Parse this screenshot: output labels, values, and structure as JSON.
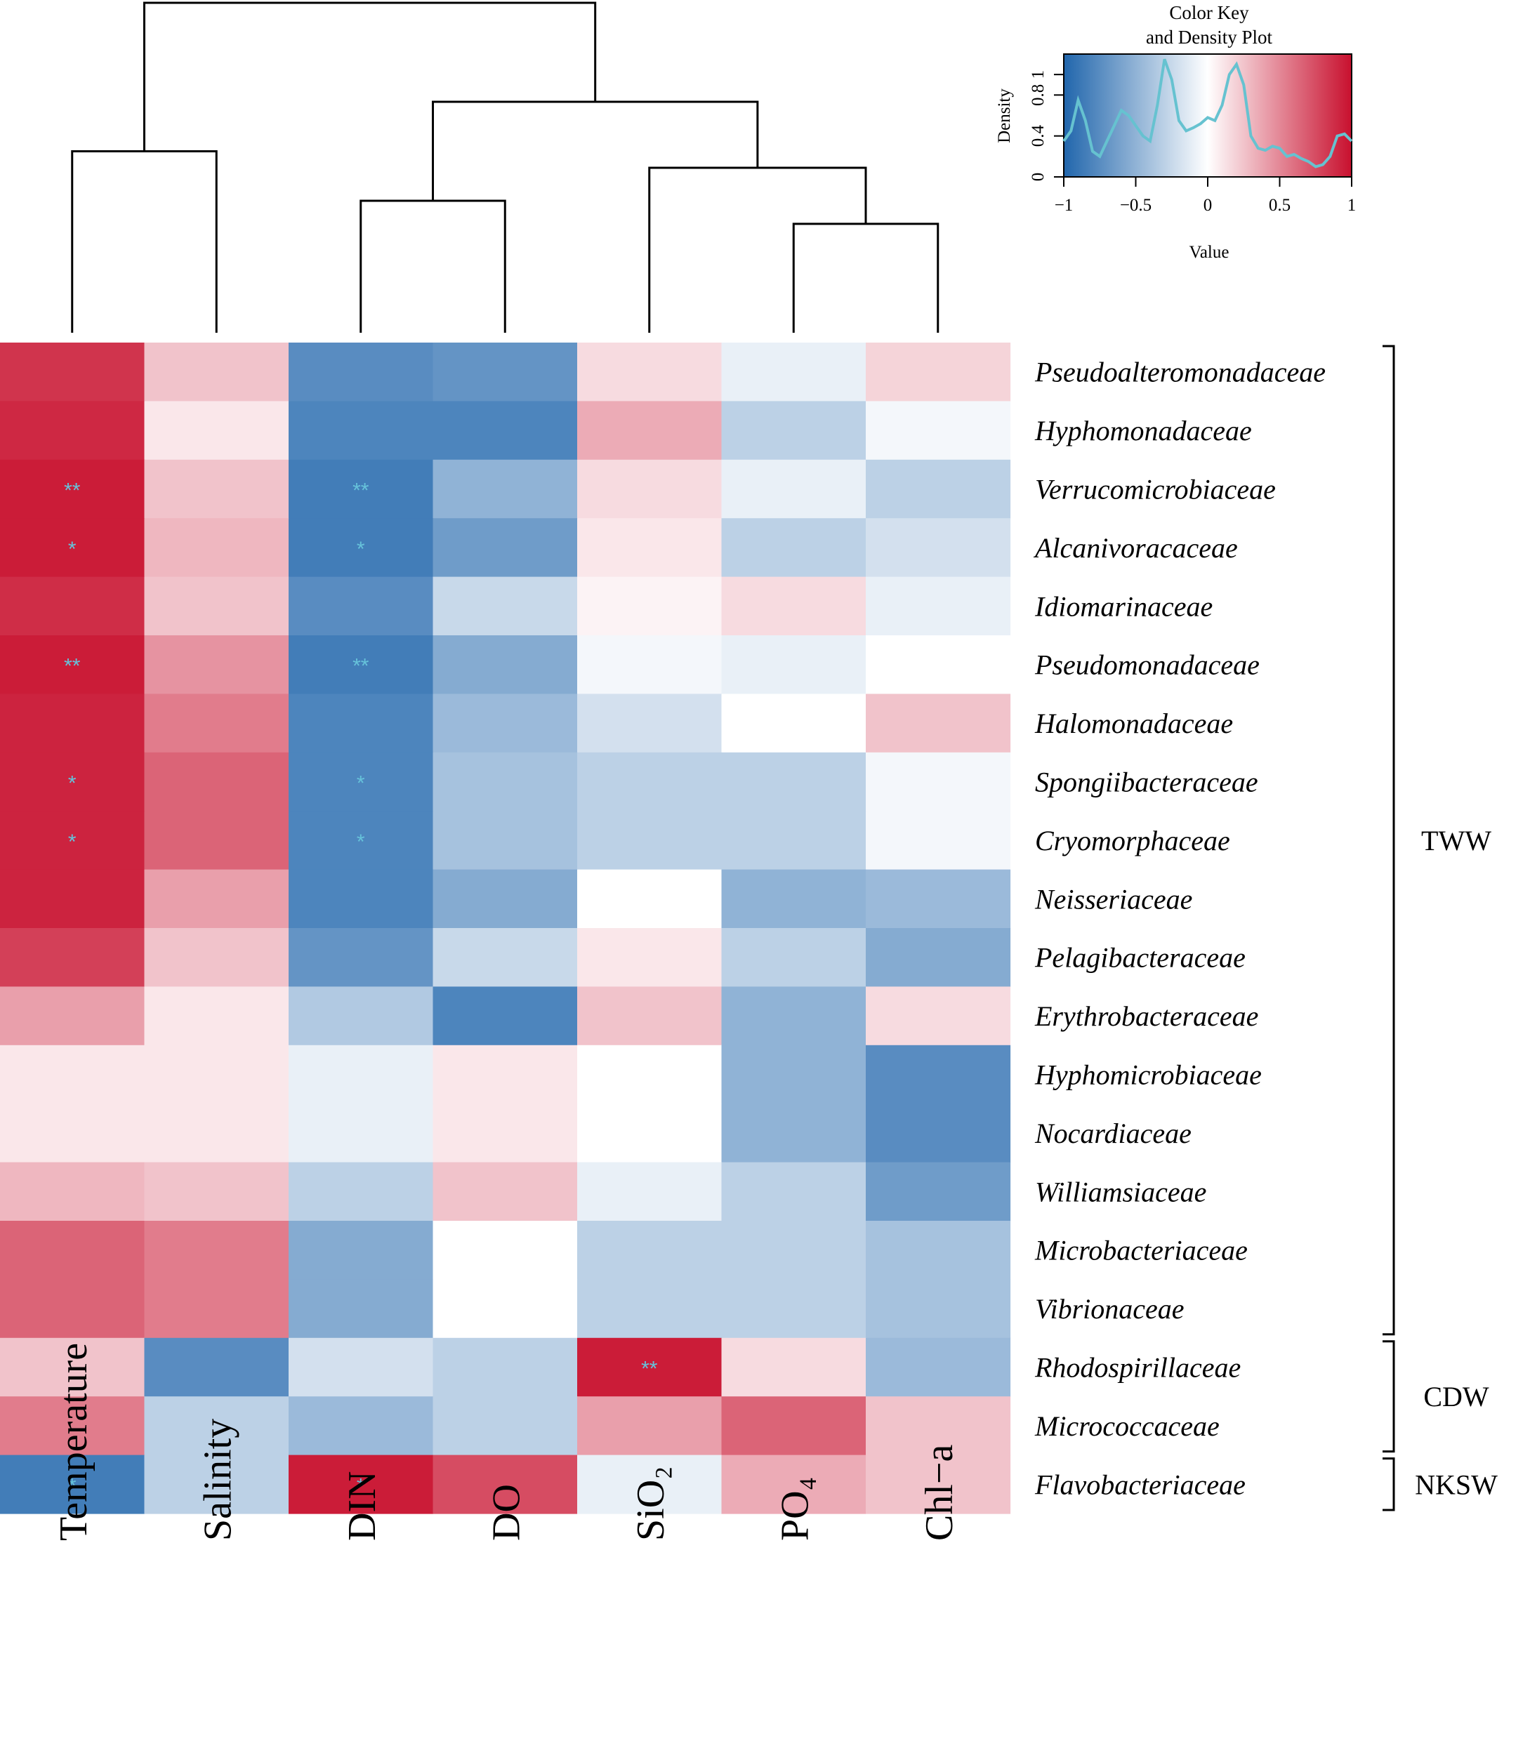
{
  "chart_data": {
    "type": "heatmap",
    "columns": [
      "Temperature",
      "Salinity",
      "DIN",
      "DO",
      "SiO₂",
      "PO₄",
      "Chl−a"
    ],
    "rows": [
      "Pseudoalteromonadaceae",
      "Hyphomonadaceae",
      "Verrucomicrobiaceae",
      "Alcanivoracaceae",
      "Idiomarinaceae",
      "Pseudomonadaceae",
      "Halomonadaceae",
      "Spongiibacteraceae",
      "Cryomorphaceae",
      "Neisseriaceae",
      "Pelagibacteraceae",
      "Erythrobacteraceae",
      "Hyphomicrobiaceae",
      "Nocardiaceae",
      "Williamsiaceae",
      "Microbacteriaceae",
      "Vibrionaceae",
      "Rhodospirillaceae",
      "Micrococcaceae",
      "Flavobacteriaceae"
    ],
    "values": [
      [
        0.85,
        0.25,
        -0.75,
        -0.7,
        0.15,
        -0.1,
        0.18
      ],
      [
        0.9,
        0.1,
        -0.8,
        -0.8,
        0.35,
        -0.3,
        -0.05
      ],
      [
        0.95,
        0.25,
        -0.85,
        -0.5,
        0.15,
        -0.1,
        -0.3
      ],
      [
        0.95,
        0.3,
        -0.85,
        -0.65,
        0.1,
        -0.3,
        -0.2
      ],
      [
        0.88,
        0.25,
        -0.75,
        -0.25,
        0.05,
        0.15,
        -0.1
      ],
      [
        0.95,
        0.45,
        -0.85,
        -0.55,
        -0.05,
        -0.1,
        0.0
      ],
      [
        0.92,
        0.55,
        -0.8,
        -0.45,
        -0.2,
        0.0,
        0.25
      ],
      [
        0.92,
        0.65,
        -0.8,
        -0.4,
        -0.3,
        -0.3,
        -0.05
      ],
      [
        0.92,
        0.65,
        -0.8,
        -0.4,
        -0.3,
        -0.3,
        -0.05
      ],
      [
        0.92,
        0.4,
        -0.8,
        -0.55,
        0.0,
        -0.5,
        -0.45
      ],
      [
        0.8,
        0.25,
        -0.7,
        -0.25,
        0.1,
        -0.3,
        -0.55
      ],
      [
        0.4,
        0.1,
        -0.35,
        -0.8,
        0.25,
        -0.5,
        0.15
      ],
      [
        0.1,
        0.1,
        -0.1,
        0.1,
        0.0,
        -0.5,
        -0.75
      ],
      [
        0.1,
        0.1,
        -0.1,
        0.1,
        0.0,
        -0.5,
        -0.75
      ],
      [
        0.3,
        0.25,
        -0.3,
        0.25,
        -0.1,
        -0.3,
        -0.65
      ],
      [
        0.65,
        0.55,
        -0.55,
        0.0,
        -0.3,
        -0.3,
        -0.4
      ],
      [
        0.65,
        0.55,
        -0.55,
        0.0,
        -0.3,
        -0.3,
        -0.4
      ],
      [
        0.25,
        -0.75,
        -0.2,
        -0.3,
        0.95,
        0.15,
        -0.45
      ],
      [
        0.55,
        -0.3,
        -0.45,
        -0.3,
        0.4,
        0.65,
        0.25
      ],
      [
        -0.85,
        -0.3,
        0.95,
        0.75,
        -0.1,
        0.35,
        0.25
      ]
    ],
    "significance": [
      [
        "",
        "",
        "",
        "",
        "",
        "",
        ""
      ],
      [
        "",
        "",
        "",
        "",
        "",
        "",
        ""
      ],
      [
        "**",
        "",
        "**",
        "",
        "",
        "",
        ""
      ],
      [
        "*",
        "",
        "*",
        "",
        "",
        "",
        ""
      ],
      [
        "",
        "",
        "",
        "",
        "",
        "",
        ""
      ],
      [
        "**",
        "",
        "**",
        "",
        "",
        "",
        ""
      ],
      [
        "",
        "",
        "",
        "",
        "",
        "",
        ""
      ],
      [
        "*",
        "",
        "*",
        "",
        "",
        "",
        ""
      ],
      [
        "*",
        "",
        "*",
        "",
        "",
        "",
        ""
      ],
      [
        "",
        "",
        "",
        "",
        "",
        "",
        ""
      ],
      [
        "",
        "",
        "",
        "",
        "",
        "",
        ""
      ],
      [
        "",
        "",
        "",
        "",
        "",
        "",
        ""
      ],
      [
        "",
        "",
        "",
        "",
        "",
        "",
        ""
      ],
      [
        "",
        "",
        "",
        "",
        "",
        "",
        ""
      ],
      [
        "",
        "",
        "",
        "",
        "",
        "",
        ""
      ],
      [
        "",
        "",
        "",
        "",
        "",
        "",
        ""
      ],
      [
        "",
        "",
        "",
        "",
        "",
        "",
        ""
      ],
      [
        "",
        "",
        "",
        "",
        "**",
        "",
        ""
      ],
      [
        "",
        "",
        "",
        "",
        "",
        "",
        ""
      ],
      [
        "*",
        "",
        "*",
        "",
        "",
        "",
        ""
      ]
    ],
    "groups": [
      {
        "label": "TWW",
        "from": 0,
        "to": 16
      },
      {
        "label": "CDW",
        "from": 17,
        "to": 18
      },
      {
        "label": "NKSW",
        "from": 19,
        "to": 19
      }
    ],
    "color_scale": {
      "min": -1,
      "max": 1,
      "low": "#2166ac",
      "mid": "#ffffff",
      "high": "#c8102e"
    },
    "color_key": {
      "title_line1": "Color Key",
      "title_line2": "and Density Plot",
      "xlabel": "Value",
      "ylabel": "Density",
      "xticks": [
        "−1",
        "−0.5",
        "0",
        "0.5",
        "1"
      ],
      "yticks": [
        "0",
        "0.4",
        "0.8",
        "1"
      ],
      "xlim": [
        -1,
        1
      ],
      "ylim": [
        0,
        1.2
      ],
      "density_x": [
        -1.0,
        -0.95,
        -0.9,
        -0.85,
        -0.8,
        -0.75,
        -0.7,
        -0.65,
        -0.6,
        -0.55,
        -0.5,
        -0.45,
        -0.4,
        -0.35,
        -0.3,
        -0.25,
        -0.2,
        -0.15,
        -0.1,
        -0.05,
        0.0,
        0.05,
        0.1,
        0.15,
        0.2,
        0.25,
        0.3,
        0.35,
        0.4,
        0.45,
        0.5,
        0.55,
        0.6,
        0.65,
        0.7,
        0.75,
        0.8,
        0.85,
        0.9,
        0.95,
        1.0
      ],
      "density_y": [
        0.35,
        0.45,
        0.75,
        0.55,
        0.25,
        0.2,
        0.35,
        0.5,
        0.65,
        0.6,
        0.5,
        0.4,
        0.35,
        0.7,
        1.15,
        0.95,
        0.55,
        0.45,
        0.48,
        0.52,
        0.58,
        0.55,
        0.7,
        1.0,
        1.1,
        0.9,
        0.4,
        0.28,
        0.26,
        0.3,
        0.28,
        0.2,
        0.22,
        0.18,
        0.15,
        0.1,
        0.12,
        0.2,
        0.4,
        0.42,
        0.35
      ]
    },
    "dendrogram": {
      "merges": [
        {
          "a": "c0",
          "b": "c1",
          "height": 0.55
        },
        {
          "a": "c2",
          "b": "c3",
          "height": 0.4
        },
        {
          "a": "c5",
          "b": "c6",
          "height": 0.33
        },
        {
          "a": "c4",
          "b": "m2",
          "height": 0.5
        },
        {
          "a": "m1",
          "b": "m3",
          "height": 0.7
        },
        {
          "a": "m0",
          "b": "m4",
          "height": 1.0
        }
      ]
    }
  }
}
